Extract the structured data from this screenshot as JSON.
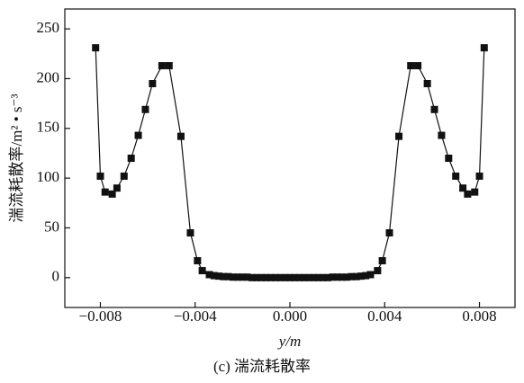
{
  "chart_data": {
    "type": "line",
    "ylabel": "湍流耗散率/m² • s⁻³",
    "xlabel": "y/m",
    "caption": "(c) 湍流耗散率",
    "series": [
      {
        "color": "#111111",
        "x": [
          -0.0082,
          -0.008,
          -0.0078,
          -0.0075,
          -0.0073,
          -0.007,
          -0.0067,
          -0.0064,
          -0.0061,
          -0.0058,
          -0.0054,
          -0.0051,
          -0.0046,
          -0.0042,
          -0.0039,
          -0.0037,
          -0.0034,
          -0.0032,
          -0.003,
          -0.0028,
          -0.0026,
          -0.0024,
          -0.0022,
          -0.002,
          -0.0018,
          -0.0016,
          -0.0014,
          -0.0012,
          -0.001,
          -0.0008,
          -0.0006,
          -0.0004,
          -0.0002,
          0,
          0.0002,
          0.0004,
          0.0006,
          0.0008,
          0.001,
          0.0012,
          0.0014,
          0.0016,
          0.0018,
          0.002,
          0.0022,
          0.0024,
          0.0026,
          0.0028,
          0.003,
          0.0032,
          0.0034,
          0.0037,
          0.0039,
          0.0042,
          0.0046,
          0.0051,
          0.0054,
          0.0058,
          0.0061,
          0.0064,
          0.0067,
          0.007,
          0.0073,
          0.0075,
          0.0078,
          0.008,
          0.0082
        ],
        "values": [
          231,
          102,
          86,
          84,
          90,
          102,
          120,
          143,
          169,
          195,
          213,
          213,
          142,
          45,
          17,
          7,
          3,
          2,
          1.5,
          1,
          1,
          0.5,
          0.5,
          0.5,
          0.5,
          0,
          0,
          0,
          0,
          0,
          0,
          0,
          0,
          0,
          0,
          0,
          0,
          0,
          0,
          0,
          0,
          0,
          0.5,
          0.5,
          0.5,
          0.5,
          1,
          1,
          1.5,
          2,
          3,
          7,
          17,
          45,
          142,
          213,
          213,
          195,
          169,
          143,
          120,
          102,
          90,
          84,
          86,
          102,
          231
        ]
      }
    ],
    "xlim": [
      -0.0095,
      0.0095
    ],
    "ylim": [
      -30,
      270
    ],
    "xticks": [
      {
        "value": -0.008,
        "label": "−0.008"
      },
      {
        "value": -0.004,
        "label": "−0.004"
      },
      {
        "value": 0,
        "label": "0.000"
      },
      {
        "value": 0.004,
        "label": "0.004"
      },
      {
        "value": 0.008,
        "label": "0.008"
      }
    ],
    "yticks": [
      0,
      50,
      100,
      150,
      200,
      250
    ]
  }
}
